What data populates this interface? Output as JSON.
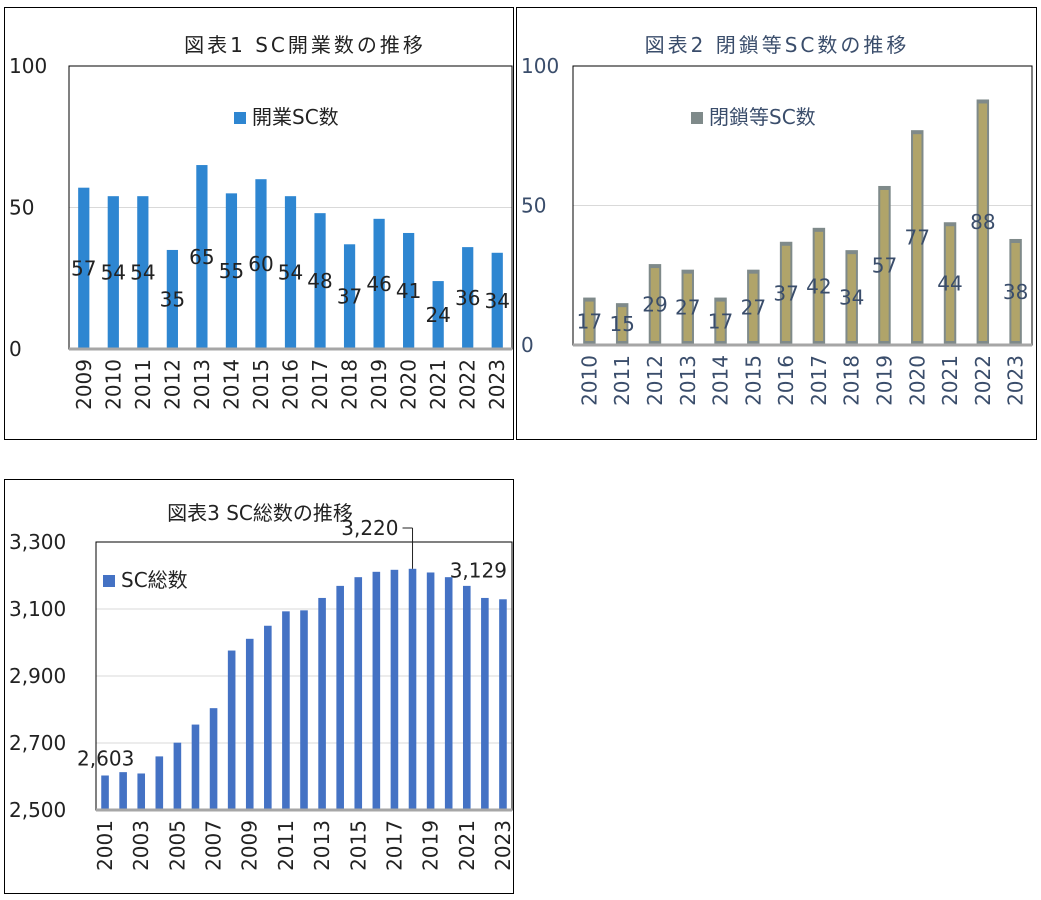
{
  "chart_data": [
    {
      "type": "bar",
      "title": "図表1 SC開業数の推移",
      "legend": "開業SC数",
      "legend_position": "top-center",
      "color": "#2e86d1",
      "categories": [
        "2009",
        "2010",
        "2011",
        "2012",
        "2013",
        "2014",
        "2015",
        "2016",
        "2017",
        "2018",
        "2019",
        "2020",
        "2021",
        "2022",
        "2023"
      ],
      "values": [
        57,
        54,
        54,
        35,
        65,
        55,
        60,
        54,
        48,
        37,
        46,
        41,
        24,
        36,
        34
      ],
      "data_labels": [
        "57",
        "54",
        "54",
        "35",
        "65",
        "55",
        "60",
        "54",
        "48",
        "37",
        "46",
        "41",
        "24",
        "36",
        "34"
      ],
      "ylim": [
        0,
        100
      ],
      "yticks": [
        0,
        50,
        100
      ],
      "ytick_labels": [
        "0",
        "50",
        "100"
      ],
      "grid": true
    },
    {
      "type": "bar",
      "title": "図表2 閉鎖等SC数の推移",
      "legend": "閉鎖等SC数",
      "legend_position": "top-center",
      "color": "#8c8c8c",
      "fill_color": "#b0a46a",
      "categories": [
        "2010",
        "2011",
        "2012",
        "2013",
        "2014",
        "2015",
        "2016",
        "2017",
        "2018",
        "2019",
        "2020",
        "2021",
        "2022",
        "2023"
      ],
      "values": [
        17,
        15,
        29,
        27,
        17,
        27,
        37,
        42,
        34,
        57,
        77,
        44,
        88,
        38
      ],
      "data_labels": [
        "17",
        "15",
        "29",
        "27",
        "17",
        "27",
        "37",
        "42",
        "34",
        "57",
        "77",
        "44",
        "88",
        "38"
      ],
      "ylim": [
        0,
        100
      ],
      "yticks": [
        0,
        50,
        100
      ],
      "ytick_labels": [
        "0",
        "50",
        "100"
      ],
      "grid": true
    },
    {
      "type": "bar",
      "title": "図表3 SC総数の推移",
      "legend": "SC総数",
      "legend_position": "top-left",
      "color": "#4472c4",
      "categories": [
        "2001",
        "2002",
        "2003",
        "2004",
        "2005",
        "2006",
        "2007",
        "2008",
        "2009",
        "2010",
        "2011",
        "2012",
        "2013",
        "2014",
        "2015",
        "2016",
        "2017",
        "2018",
        "2019",
        "2020",
        "2021",
        "2022",
        "2023"
      ],
      "xtick_labels": [
        "2001",
        "2003",
        "2005",
        "2007",
        "2009",
        "2011",
        "2013",
        "2015",
        "2017",
        "2019",
        "2021",
        "2023"
      ],
      "values": [
        2603,
        2613,
        2609,
        2660,
        2701,
        2755,
        2804,
        2976,
        3011,
        3050,
        3093,
        3096,
        3133,
        3169,
        3195,
        3211,
        3217,
        3220,
        3209,
        3195,
        3169,
        3133,
        3129
      ],
      "annotations": [
        {
          "label": "2,603",
          "category": "2001"
        },
        {
          "label": "3,220",
          "category": "2018"
        },
        {
          "label": "3,129",
          "category": "2023"
        }
      ],
      "ylim": [
        2500,
        3300
      ],
      "yticks": [
        2500,
        2700,
        2900,
        3100,
        3300
      ],
      "ytick_labels": [
        "2,500",
        "2,700",
        "2,900",
        "3,100",
        "3,300"
      ],
      "grid": true
    }
  ]
}
